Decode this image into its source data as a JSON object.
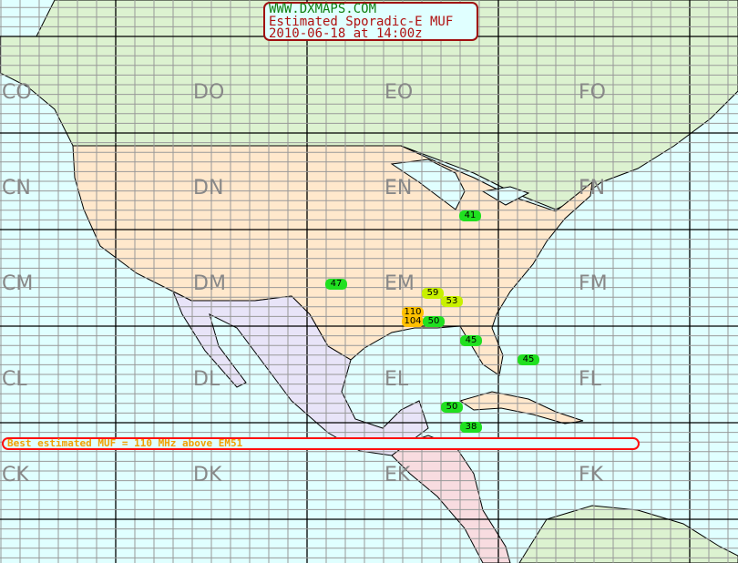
{
  "header": {
    "site": "WWW.DXMAPS.COM",
    "title": "Estimated Sporadic-E MUF",
    "datetime": "2010-06-18 at 14:00z"
  },
  "banner": "Best estimated MUF = 110 MHz above EM51",
  "grid_labels": [
    [
      "CO",
      "DO",
      "EO",
      "FO"
    ],
    [
      "CN",
      "DN",
      "EN",
      "FN"
    ],
    [
      "CM",
      "DM",
      "EM",
      "FM"
    ],
    [
      "CL",
      "DL",
      "EL",
      "FL"
    ],
    [
      "CK",
      "DK",
      "EK",
      "FK"
    ]
  ],
  "colors": {
    "ocean": "#e0ffff",
    "canada": "#dcf2d0",
    "usa": "#ffe8cc",
    "mexico": "#e8e4f8",
    "central_america": "#f8dce0",
    "muf_low": "#20e020",
    "muf_mid": "#c8f000",
    "muf_high": "#ffc000"
  },
  "muf_markers": [
    {
      "value": "41",
      "level": "muf_low"
    },
    {
      "value": "47",
      "level": "muf_low"
    },
    {
      "value": "59",
      "level": "muf_mid"
    },
    {
      "value": "53",
      "level": "muf_mid"
    },
    {
      "value": "110",
      "level": "muf_high"
    },
    {
      "value": "104",
      "level": "muf_high"
    },
    {
      "value": "50",
      "level": "muf_low"
    },
    {
      "value": "45",
      "level": "muf_low"
    },
    {
      "value": "45",
      "level": "muf_low"
    },
    {
      "value": "50",
      "level": "muf_low"
    },
    {
      "value": "38",
      "level": "muf_low"
    }
  ]
}
